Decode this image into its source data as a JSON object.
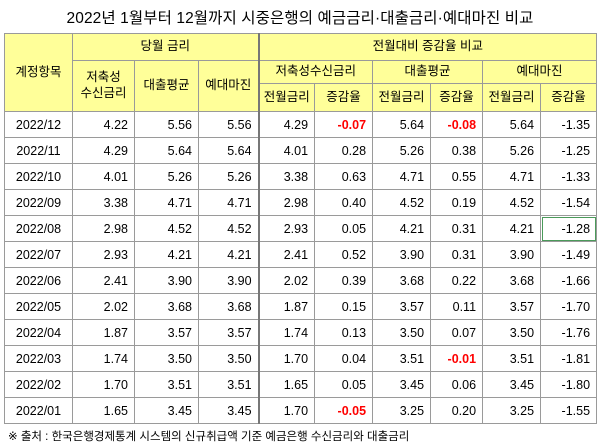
{
  "title": "2022년 1월부터 12월까지 시중은행의 예금금리·대출금리·예대마진 비교",
  "headers": {
    "row_label": "계정항목",
    "current_group": "당월 금리",
    "current_cols": [
      "저축성\n수신금리",
      "대출평균",
      "예대마진"
    ],
    "compare_group": "전월대비 증감율 비교",
    "compare_subgroups": [
      "저축성수신금리",
      "대출평균",
      "예대마진"
    ],
    "compare_cols": [
      "전월금리",
      "증감율",
      "전월금리",
      "증감율",
      "전월금리",
      "증감율"
    ]
  },
  "rows": [
    {
      "date": "2022/12",
      "cells": [
        "4.22",
        "5.56",
        "5.56",
        "4.29",
        "-0.07",
        "5.64",
        "-0.08",
        "5.64",
        "-1.35"
      ]
    },
    {
      "date": "2022/11",
      "cells": [
        "4.29",
        "5.64",
        "5.64",
        "4.01",
        "0.28",
        "5.26",
        "0.38",
        "5.26",
        "-1.25"
      ]
    },
    {
      "date": "2022/10",
      "cells": [
        "4.01",
        "5.26",
        "5.26",
        "3.38",
        "0.63",
        "4.71",
        "0.55",
        "4.71",
        "-1.33"
      ]
    },
    {
      "date": "2022/09",
      "cells": [
        "3.38",
        "4.71",
        "4.71",
        "2.98",
        "0.40",
        "4.52",
        "0.19",
        "4.52",
        "-1.54"
      ]
    },
    {
      "date": "2022/08",
      "cells": [
        "2.98",
        "4.52",
        "4.52",
        "2.93",
        "0.05",
        "4.21",
        "0.31",
        "4.21",
        "-1.28"
      ]
    },
    {
      "date": "2022/07",
      "cells": [
        "2.93",
        "4.21",
        "4.21",
        "2.41",
        "0.52",
        "3.90",
        "0.31",
        "3.90",
        "-1.49"
      ]
    },
    {
      "date": "2022/06",
      "cells": [
        "2.41",
        "3.90",
        "3.90",
        "2.02",
        "0.39",
        "3.68",
        "0.22",
        "3.68",
        "-1.66"
      ]
    },
    {
      "date": "2022/05",
      "cells": [
        "2.02",
        "3.68",
        "3.68",
        "1.87",
        "0.15",
        "3.57",
        "0.11",
        "3.57",
        "-1.70"
      ]
    },
    {
      "date": "2022/04",
      "cells": [
        "1.87",
        "3.57",
        "3.57",
        "1.74",
        "0.13",
        "3.50",
        "0.07",
        "3.50",
        "-1.76"
      ]
    },
    {
      "date": "2022/03",
      "cells": [
        "1.74",
        "3.50",
        "3.50",
        "1.70",
        "0.04",
        "3.51",
        "-0.01",
        "3.51",
        "-1.81"
      ]
    },
    {
      "date": "2022/02",
      "cells": [
        "1.70",
        "3.51",
        "3.51",
        "1.65",
        "0.05",
        "3.45",
        "0.06",
        "3.45",
        "-1.80"
      ]
    },
    {
      "date": "2022/01",
      "cells": [
        "1.65",
        "3.45",
        "3.45",
        "1.70",
        "-0.05",
        "3.25",
        "0.20",
        "3.25",
        "-1.55"
      ]
    }
  ],
  "highlight_color": "#ffff99",
  "negative_emphasis_color": "#ff0000",
  "source": "※ 출처 : 한국은행경제통계 시스템의 신규취급액 기준 예금은행 수신금리와 대출금리"
}
